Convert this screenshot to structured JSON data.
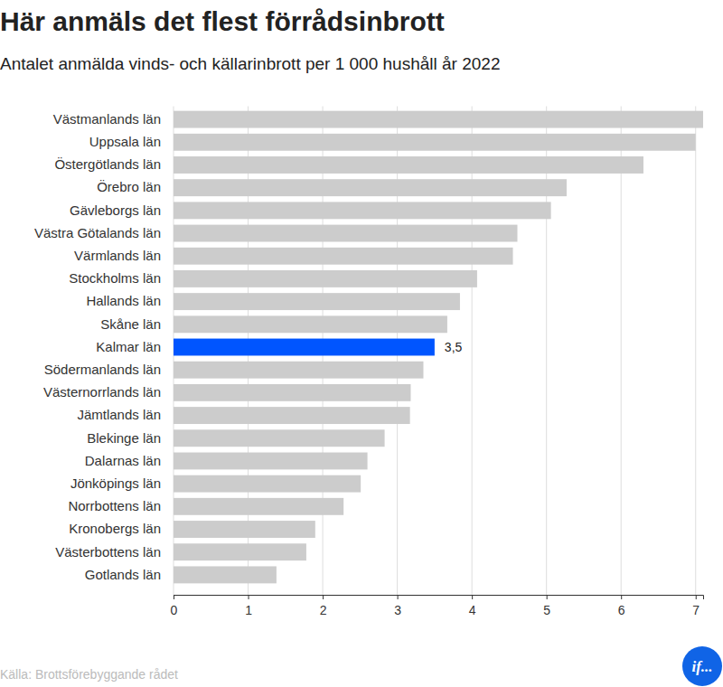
{
  "chart_data": {
    "type": "bar",
    "orientation": "horizontal",
    "title": "Här anmäls det flest förrådsinbrott",
    "subtitle": "Antalet anmälda vinds- och källarinbrott per 1 000 hushåll år 2022",
    "source": "Källa: Brottsförebyggande rådet",
    "logo_text": "if...",
    "categories": [
      "Västmanlands län",
      "Uppsala län",
      "Östergötlands län",
      "Örebro län",
      "Gävleborgs län",
      "Västra Götalands län",
      "Värmlands län",
      "Stockholms län",
      "Hallands län",
      "Skåne län",
      "Kalmar län",
      "Södermanlands län",
      "Västernorrlands län",
      "Jämtlands län",
      "Blekinge län",
      "Dalarnas län",
      "Jönköpings län",
      "Norrbottens län",
      "Kronobergs län",
      "Västerbottens län",
      "Gotlands län"
    ],
    "values": [
      7.1,
      7.0,
      6.3,
      5.27,
      5.06,
      4.61,
      4.55,
      4.07,
      3.84,
      3.67,
      3.5,
      3.35,
      3.18,
      3.17,
      2.83,
      2.6,
      2.51,
      2.28,
      1.9,
      1.78,
      1.38
    ],
    "value_labels": [
      null,
      null,
      null,
      null,
      null,
      null,
      null,
      null,
      null,
      null,
      "3,5",
      null,
      null,
      null,
      null,
      null,
      null,
      null,
      null,
      null,
      null
    ],
    "colors": [
      "#cccccc",
      "#cccccc",
      "#cccccc",
      "#cccccc",
      "#cccccc",
      "#cccccc",
      "#cccccc",
      "#cccccc",
      "#cccccc",
      "#cccccc",
      "#0055ff",
      "#cccccc",
      "#cccccc",
      "#cccccc",
      "#cccccc",
      "#cccccc",
      "#cccccc",
      "#cccccc",
      "#cccccc",
      "#cccccc",
      "#cccccc"
    ],
    "data_labels": true,
    "xlim": [
      0,
      7.1
    ],
    "xticks": [
      0,
      1,
      2,
      3,
      4,
      5,
      6,
      7
    ],
    "grid": true
  }
}
